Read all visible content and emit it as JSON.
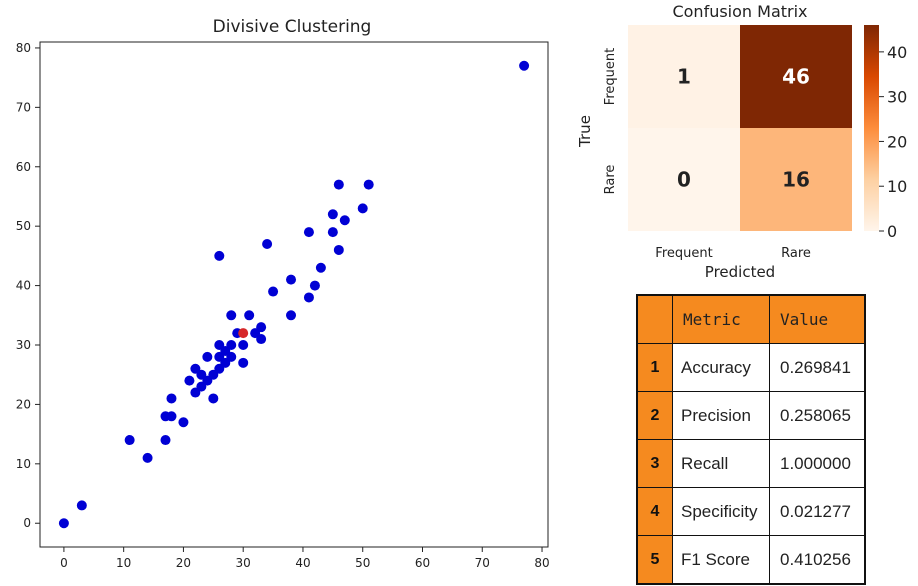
{
  "chart_data": [
    {
      "type": "scatter",
      "title": "Divisive Clustering",
      "xlabel": "",
      "ylabel": "",
      "xlim": [
        -4,
        81
      ],
      "ylim": [
        -4,
        81
      ],
      "xticks": [
        0,
        10,
        20,
        30,
        40,
        50,
        60,
        70,
        80
      ],
      "yticks": [
        0,
        10,
        20,
        30,
        40,
        50,
        60,
        70,
        80
      ],
      "series": [
        {
          "name": "cluster-blue",
          "color": "#0000d4",
          "points": [
            [
              0,
              0
            ],
            [
              3,
              3
            ],
            [
              11,
              14
            ],
            [
              14,
              11
            ],
            [
              17,
              18
            ],
            [
              17,
              14
            ],
            [
              18,
              21
            ],
            [
              18,
              18
            ],
            [
              20,
              17
            ],
            [
              21,
              24
            ],
            [
              22,
              26
            ],
            [
              22,
              22
            ],
            [
              23,
              23
            ],
            [
              23,
              25
            ],
            [
              24,
              28
            ],
            [
              24,
              24
            ],
            [
              25,
              21
            ],
            [
              25,
              25
            ],
            [
              26,
              45
            ],
            [
              26,
              28
            ],
            [
              26,
              26
            ],
            [
              26,
              30
            ],
            [
              27,
              29
            ],
            [
              27,
              27
            ],
            [
              28,
              35
            ],
            [
              28,
              30
            ],
            [
              28,
              28
            ],
            [
              29,
              32
            ],
            [
              30,
              30
            ],
            [
              30,
              27
            ],
            [
              31,
              35
            ],
            [
              32,
              32
            ],
            [
              33,
              33
            ],
            [
              33,
              31
            ],
            [
              34,
              47
            ],
            [
              35,
              39
            ],
            [
              38,
              41
            ],
            [
              38,
              35
            ],
            [
              41,
              38
            ],
            [
              41,
              49
            ],
            [
              42,
              40
            ],
            [
              43,
              43
            ],
            [
              45,
              52
            ],
            [
              45,
              49
            ],
            [
              46,
              57
            ],
            [
              46,
              46
            ],
            [
              47,
              51
            ],
            [
              50,
              53
            ],
            [
              51,
              57
            ],
            [
              77,
              77
            ]
          ]
        },
        {
          "name": "cluster-red",
          "color": "#d62728",
          "points": [
            [
              30,
              32
            ]
          ]
        }
      ]
    },
    {
      "type": "heatmap",
      "title": "Confusion Matrix",
      "xlabel": "Predicted",
      "ylabel": "True",
      "x_categories": [
        "Frequent",
        "Rare"
      ],
      "y_categories": [
        "Frequent",
        "Rare"
      ],
      "values": [
        [
          1,
          46
        ],
        [
          0,
          16
        ]
      ],
      "colorbar_range": [
        0,
        46
      ],
      "colorbar_ticks": [
        0,
        10,
        20,
        30,
        40
      ]
    },
    {
      "type": "table",
      "columns": [
        "Metric",
        "Value"
      ],
      "rows": [
        {
          "index": "1",
          "metric": "Accuracy",
          "value": "0.269841"
        },
        {
          "index": "2",
          "metric": "Precision",
          "value": "0.258065"
        },
        {
          "index": "3",
          "metric": "Recall",
          "value": "1.000000"
        },
        {
          "index": "4",
          "metric": "Specificity",
          "value": "0.021277"
        },
        {
          "index": "5",
          "metric": "F1 Score",
          "value": "0.410256"
        }
      ]
    }
  ]
}
